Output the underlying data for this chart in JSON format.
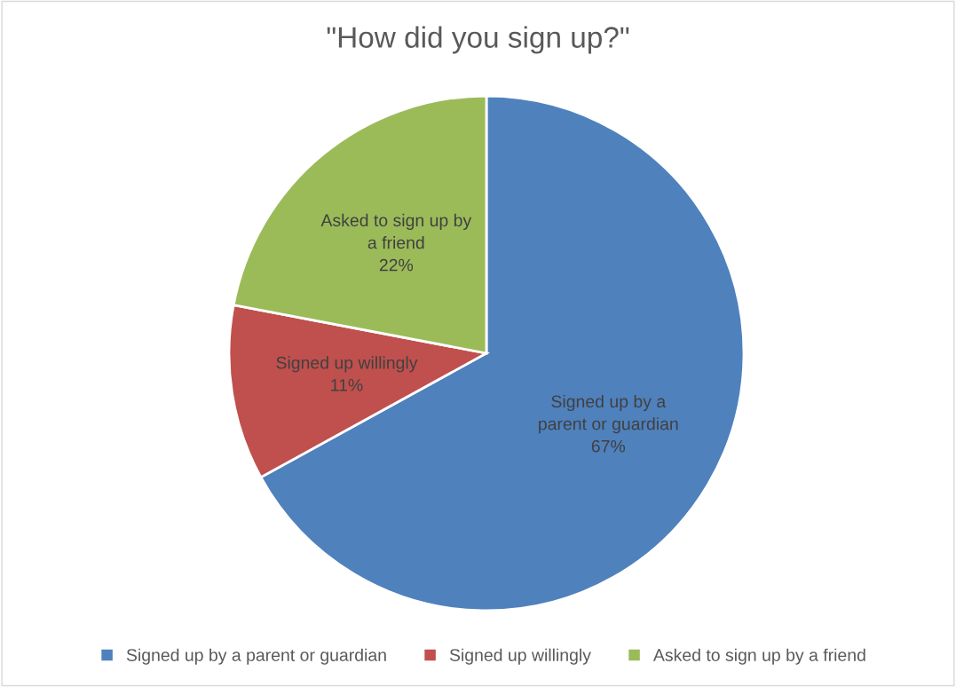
{
  "chart_data": {
    "type": "pie",
    "title": "\"How did you sign up?\"",
    "categories": [
      "Signed up by a parent or guardian",
      "Signed up willingly",
      "Asked to sign up by a friend"
    ],
    "values": [
      67,
      11,
      22
    ],
    "colors": [
      "#4f81bd",
      "#c0504d",
      "#9bbb59"
    ],
    "value_labels": [
      "Signed up by a\nparent or guardian\n67%",
      "Signed up willingly\n11%",
      "Asked to sign up by\na friend\n22%"
    ],
    "legend": "bottom"
  }
}
